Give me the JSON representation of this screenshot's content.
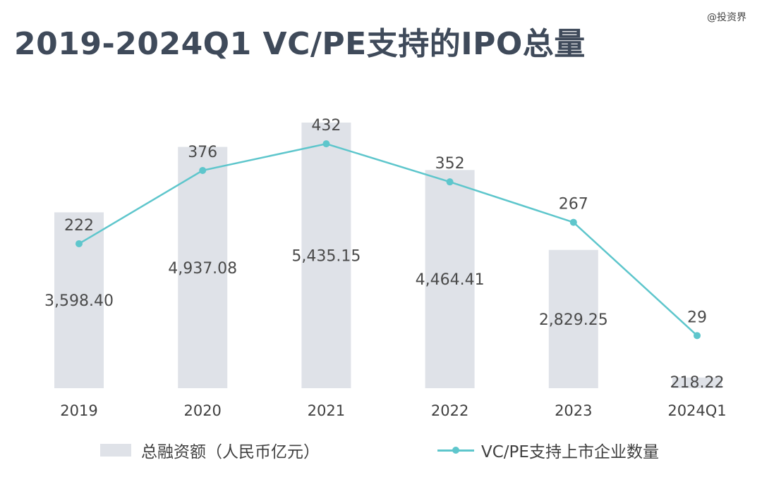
{
  "watermark": "@投资界",
  "chart_data": {
    "type": "bar",
    "title": "2019-2024Q1 VC/PE支持的IPO总量",
    "categories": [
      "2019",
      "2020",
      "2021",
      "2022",
      "2023",
      "2024Q1"
    ],
    "series": [
      {
        "name": "总融资额（人民币亿元）",
        "type": "bar",
        "values": [
          3598.4,
          4937.08,
          5435.15,
          4464.41,
          2829.25,
          218.22
        ],
        "labels": [
          "3,598.40",
          "4,937.08",
          "5,435.15",
          "4,464.41",
          "2,829.25",
          "218.22"
        ],
        "color": "#dfe2e8"
      },
      {
        "name": "VC/PE支持上市企业数量",
        "type": "line",
        "values": [
          222,
          376,
          432,
          352,
          267,
          29
        ],
        "labels": [
          "222",
          "376",
          "432",
          "352",
          "267",
          "29"
        ],
        "color": "#5ec6cc"
      }
    ],
    "legend": "bottom",
    "grid": false
  }
}
